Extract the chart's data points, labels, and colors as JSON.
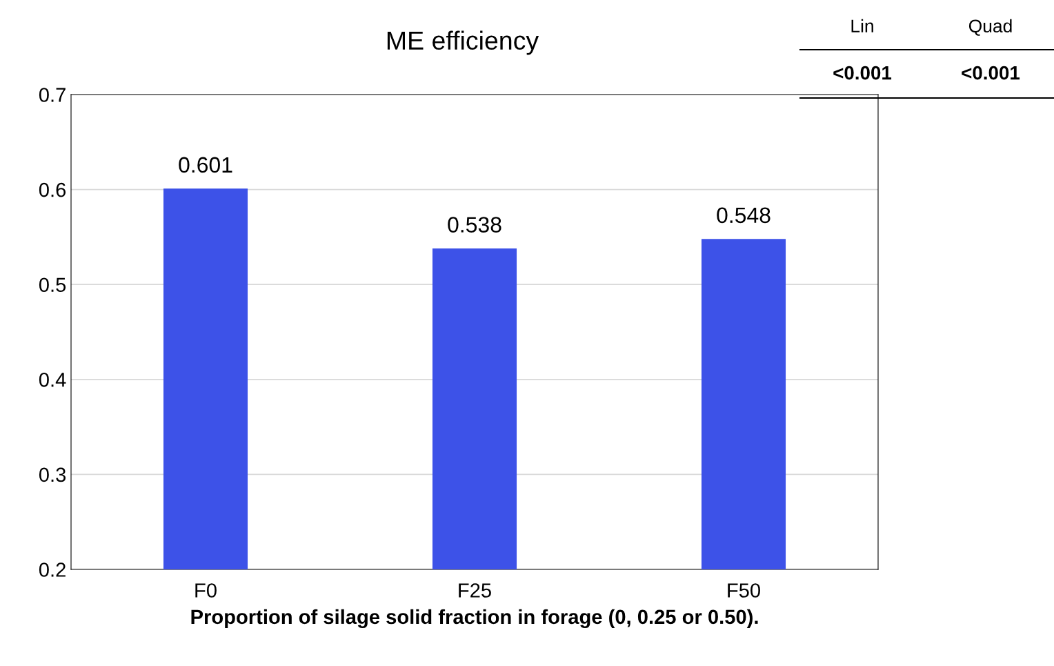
{
  "chart_data": {
    "type": "bar",
    "title": "ME efficiency",
    "xlabel": "Proportion of silage solid fraction in forage (0, 0.25 or 0.50).",
    "categories": [
      "F0",
      "F25",
      "F50"
    ],
    "values": [
      0.601,
      0.538,
      0.548
    ],
    "color": "#3d52e8",
    "ylim": [
      0.2,
      0.7
    ],
    "yticks": [
      0.2,
      0.3,
      0.4,
      0.5,
      0.6,
      0.7
    ],
    "grid": "y",
    "data_labels": true,
    "annotations": [
      "Lin",
      "Quad",
      "<0.001",
      "<0.001"
    ]
  }
}
